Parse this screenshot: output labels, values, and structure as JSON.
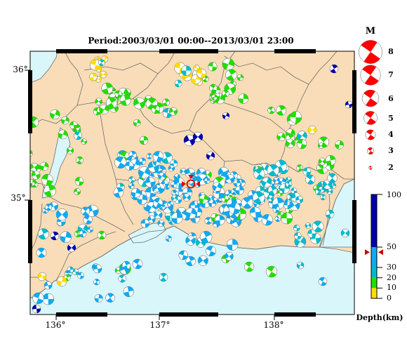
{
  "map": {
    "title": "Period:2003/03/01 00:00--2013/03/01 23:00",
    "lat_labels": [
      "36°",
      "35°"
    ],
    "lon_labels": [
      "136°",
      "137°",
      "138°"
    ],
    "colors": {
      "land": "#f9ddb8",
      "sea": "#d9f7fb",
      "border": "#6e6e6e",
      "frame": "#000000"
    }
  },
  "magnitude_legend": {
    "title": "M",
    "items": [
      {
        "label": "8",
        "magnitude": 8
      },
      {
        "label": "7",
        "magnitude": 7
      },
      {
        "label": "6",
        "magnitude": 6
      },
      {
        "label": "5",
        "magnitude": 5
      },
      {
        "label": "4",
        "magnitude": 4
      },
      {
        "label": "3",
        "magnitude": 3
      },
      {
        "label": "2",
        "magnitude": 2
      }
    ],
    "color": "#ff0000"
  },
  "depth_colorbar": {
    "title": "Depth(km)",
    "ticks": [
      "100",
      "50",
      "30",
      "20",
      "10",
      "0"
    ],
    "bands": [
      {
        "from": 0,
        "to": 10,
        "color": "#ffdd00"
      },
      {
        "from": 10,
        "to": 20,
        "color": "#22dd00"
      },
      {
        "from": 20,
        "to": 30,
        "color": "#00bbcc"
      },
      {
        "from": 30,
        "to": 50,
        "color": "#11aaee"
      },
      {
        "from": 50,
        "to": 100,
        "color": "#0000aa"
      }
    ],
    "marker_depth": 45,
    "marker_color": "#cc0000"
  },
  "reference_marker": {
    "color": "#dd0000",
    "icon": "target-marker-icon"
  },
  "icon": "focal-mechanism-beachball"
}
